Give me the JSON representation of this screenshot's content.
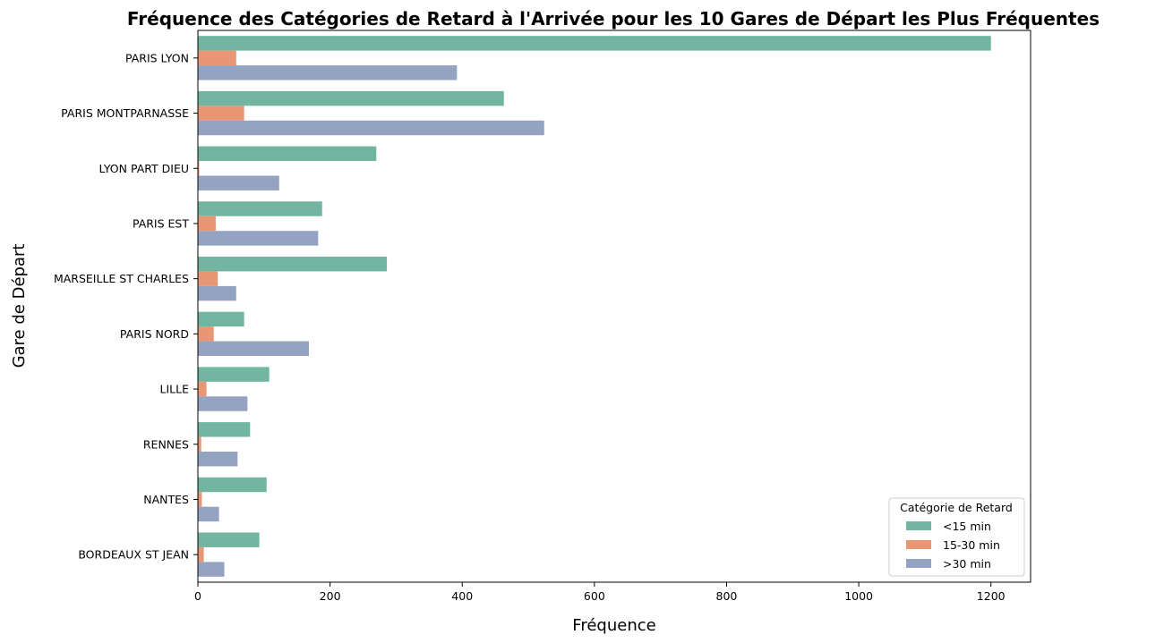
{
  "chart_data": {
    "type": "bar",
    "orientation": "horizontal",
    "title": "Fréquence des Catégories de Retard à l'Arrivée pour les 10 Gares de Départ les Plus Fréquentes",
    "xlabel": "Fréquence",
    "ylabel": "Gare de Départ",
    "xlim": [
      0,
      1260
    ],
    "xticks": [
      0,
      200,
      400,
      600,
      800,
      1000,
      1200
    ],
    "grid": false,
    "legend_title": "Catégorie de Retard",
    "legend_position": "bottom-right",
    "categories": [
      "PARIS LYON",
      "PARIS MONTPARNASSE",
      "LYON PART DIEU",
      "PARIS EST",
      "MARSEILLE ST CHARLES",
      "PARIS NORD",
      "LILLE",
      "RENNES",
      "NANTES",
      "BORDEAUX ST JEAN"
    ],
    "series": [
      {
        "name": "<15 min",
        "color": "#72b6a1",
        "values": [
          1200,
          463,
          270,
          188,
          286,
          70,
          108,
          79,
          104,
          93
        ]
      },
      {
        "name": "15-30 min",
        "color": "#e99675",
        "values": [
          58,
          70,
          2,
          27,
          30,
          24,
          13,
          5,
          6,
          9
        ]
      },
      {
        "name": ">30 min",
        "color": "#95a3c3",
        "values": [
          392,
          524,
          123,
          182,
          58,
          168,
          75,
          60,
          32,
          40
        ]
      }
    ]
  }
}
